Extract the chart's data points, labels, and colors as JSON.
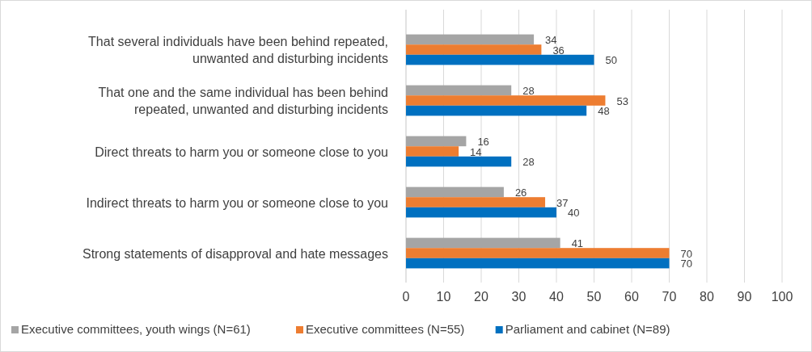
{
  "chart_data": {
    "type": "bar",
    "orientation": "horizontal",
    "categories": [
      "That several individuals have been behind repeated, unwanted and disturbing incidents",
      "That one and the same individual has been behind repeated, unwanted and disturbing incidents",
      "Direct threats to harm you or someone close to you",
      "Indirect threats to harm you or someone close to you",
      "Strong statements of disapproval and hate messages"
    ],
    "series": [
      {
        "name": "Executive committees, youth wings (N=61)",
        "color": "#a5a5a5",
        "values": [
          34,
          28,
          16,
          26,
          41
        ]
      },
      {
        "name": "Executive committees (N=55)",
        "color": "#ed7d31",
        "values": [
          36,
          53,
          14,
          37,
          70
        ]
      },
      {
        "name": "Parliament and cabinet (N=89)",
        "color": "#0070c0",
        "values": [
          50,
          48,
          28,
          40,
          70
        ]
      }
    ],
    "xlim": [
      0,
      100
    ],
    "xticks": [
      0,
      10,
      20,
      30,
      40,
      50,
      60,
      70,
      80,
      90,
      100
    ],
    "grid": "x",
    "legend": "bottom",
    "data_labels": true
  }
}
